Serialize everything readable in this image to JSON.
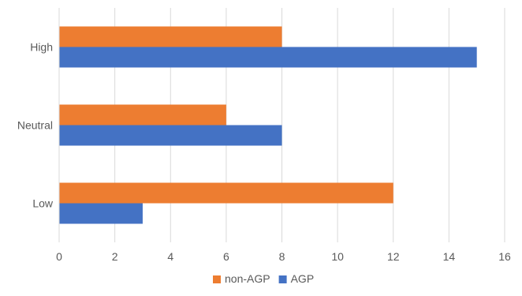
{
  "chart_data": {
    "type": "bar",
    "orientation": "horizontal",
    "categories": [
      "High",
      "Neutral",
      "Low"
    ],
    "series": [
      {
        "name": "non-AGP",
        "values": [
          8,
          6,
          12
        ],
        "color": "#ED7D31"
      },
      {
        "name": "AGP",
        "values": [
          15,
          8,
          3
        ],
        "color": "#4472C4"
      }
    ],
    "xlim": [
      0,
      16
    ],
    "xticks": [
      0,
      2,
      4,
      6,
      8,
      10,
      12,
      14,
      16
    ],
    "xtick_labels": [
      "0",
      "2",
      "4",
      "6",
      "8",
      "10",
      "12",
      "14",
      "16"
    ],
    "grid": true,
    "grid_color": "#D9D9D9",
    "legend_position": "bottom"
  }
}
